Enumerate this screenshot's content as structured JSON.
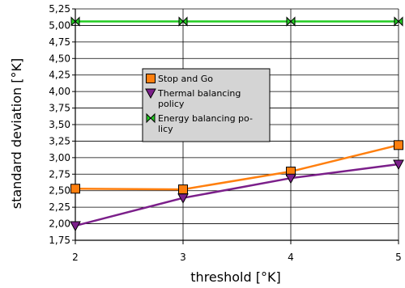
{
  "chart_data": {
    "type": "line",
    "xlabel": "threshold [°K]",
    "ylabel": "standard deviation [°K]",
    "xlim": [
      2,
      5
    ],
    "ylim": [
      1.75,
      5.25
    ],
    "x_ticks": [
      2,
      3,
      4,
      5
    ],
    "x_tick_labels": [
      "2",
      "3",
      "4",
      "5"
    ],
    "y_ticks": [
      1.75,
      2.0,
      2.25,
      2.5,
      2.75,
      3.0,
      3.25,
      3.5,
      3.75,
      4.0,
      4.25,
      4.5,
      4.75,
      5.0,
      5.25
    ],
    "y_tick_labels": [
      "1,75",
      "2,00",
      "2,25",
      "2,50",
      "2,75",
      "3,00",
      "3,25",
      "3,50",
      "3,75",
      "4,00",
      "4,25",
      "4,50",
      "4,75",
      "5,00",
      "5,25"
    ],
    "grid": true,
    "legend_placement": "center",
    "x": [
      2,
      3,
      4,
      5
    ],
    "series": [
      {
        "name": "Stop and Go",
        "legend_lines": [
          "Stop and Go"
        ],
        "values": [
          2.53,
          2.52,
          2.79,
          3.19
        ],
        "color": "#ff7f0e",
        "marker": "square"
      },
      {
        "name": "Thermal balancing policy",
        "legend_lines": [
          "Thermal balancing",
          "policy"
        ],
        "values": [
          1.97,
          2.39,
          2.69,
          2.9
        ],
        "color": "#7b1f8a",
        "marker": "triangle-down"
      },
      {
        "name": "Energy balancing policy",
        "legend_lines": [
          "Energy balancing po-",
          "licy"
        ],
        "values": [
          5.06,
          5.06,
          5.06,
          5.06
        ],
        "color": "#22cc22",
        "marker": "bowtie"
      }
    ]
  }
}
